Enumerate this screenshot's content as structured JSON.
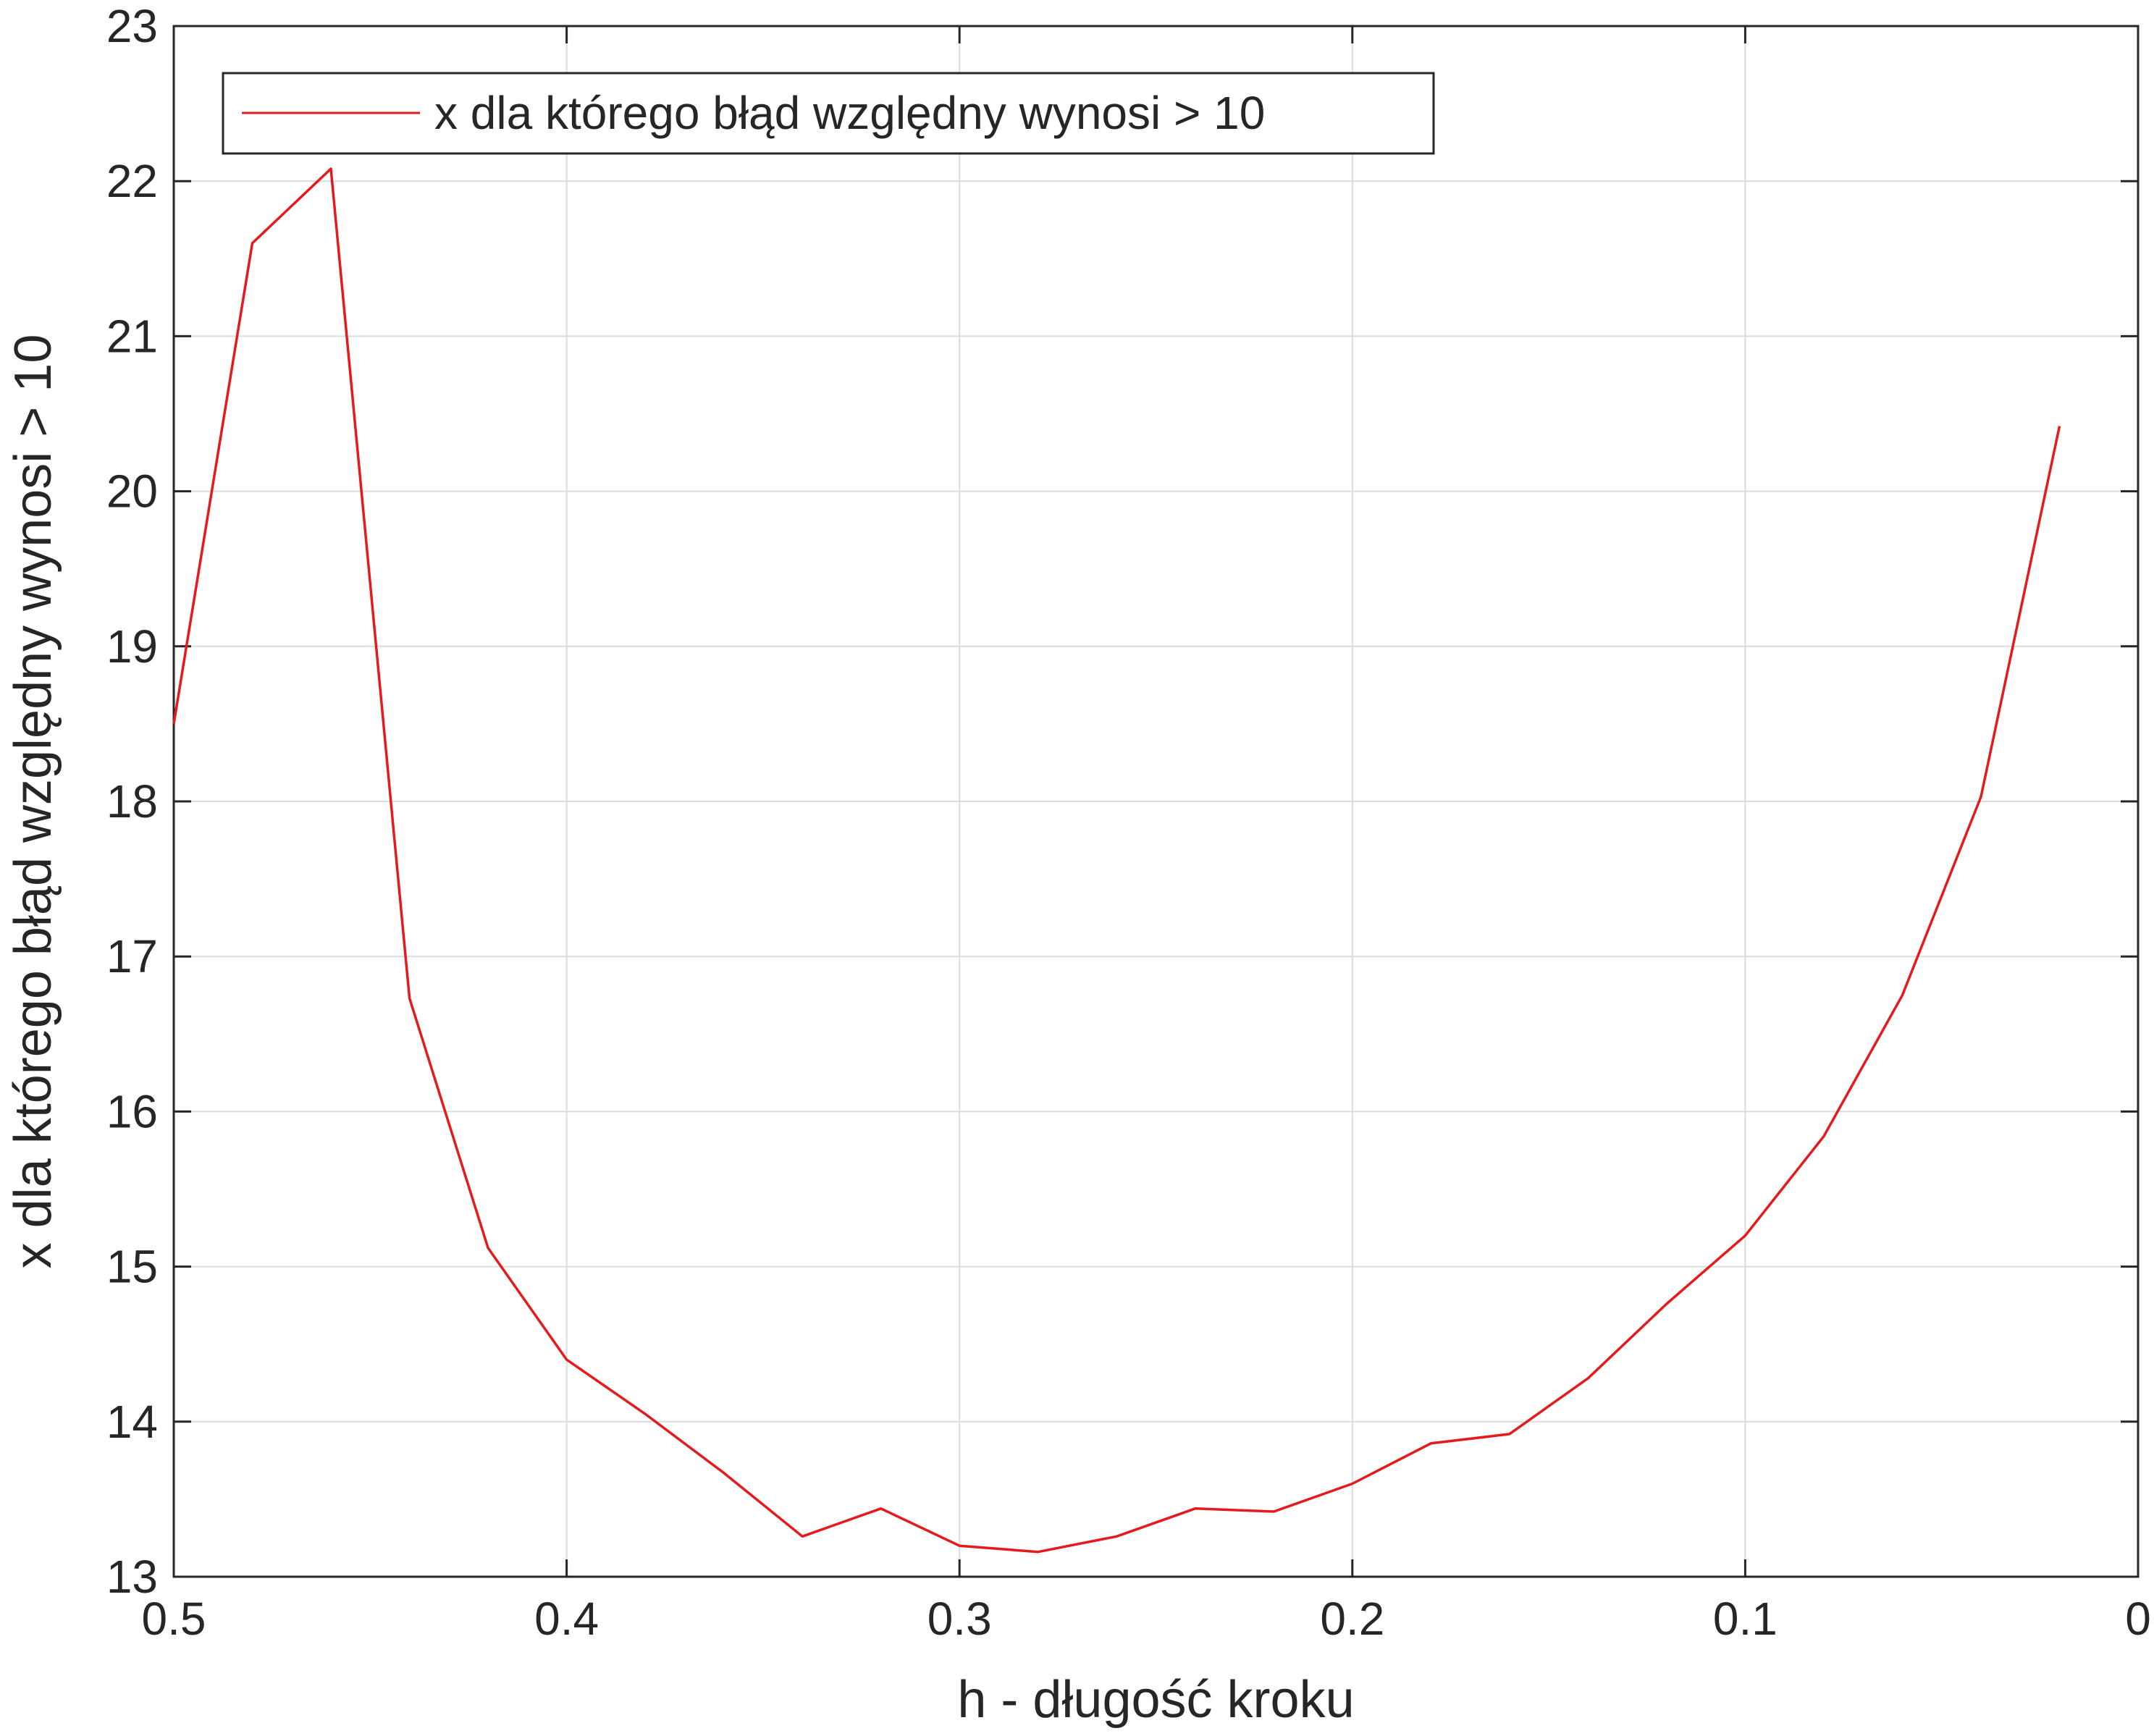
{
  "chart_data": {
    "type": "line",
    "title": "",
    "xlabel": "h - długość kroku",
    "ylabel": "x dla którego błąd względny wynosi > 10",
    "x_reversed": true,
    "xlim": [
      0,
      0.5
    ],
    "ylim": [
      13,
      23
    ],
    "xticks": [
      0.5,
      0.4,
      0.3,
      0.2,
      0.1,
      0
    ],
    "xtick_labels": [
      "0.5",
      "0.4",
      "0.3",
      "0.2",
      "0.1",
      "0"
    ],
    "yticks": [
      13,
      14,
      15,
      16,
      17,
      18,
      19,
      20,
      21,
      22,
      23
    ],
    "ytick_labels": [
      "13",
      "14",
      "15",
      "16",
      "17",
      "18",
      "19",
      "20",
      "21",
      "22",
      "23"
    ],
    "grid": true,
    "legend_position": "top-left",
    "series": [
      {
        "name": "x dla którego błąd względny wynosi > 10",
        "color": "#e41a1c",
        "x": [
          0.5,
          0.48,
          0.46,
          0.44,
          0.42,
          0.4,
          0.38,
          0.36,
          0.34,
          0.32,
          0.3,
          0.28,
          0.26,
          0.24,
          0.22,
          0.2,
          0.18,
          0.16,
          0.14,
          0.12,
          0.1,
          0.08,
          0.06,
          0.04,
          0.02
        ],
        "y": [
          18.5,
          21.6,
          22.08,
          16.73,
          15.12,
          14.4,
          14.05,
          13.67,
          13.26,
          13.44,
          13.2,
          13.16,
          13.26,
          13.44,
          13.42,
          13.6,
          13.86,
          13.92,
          14.28,
          14.76,
          15.2,
          15.84,
          16.75,
          18.03,
          20.42
        ]
      }
    ]
  }
}
